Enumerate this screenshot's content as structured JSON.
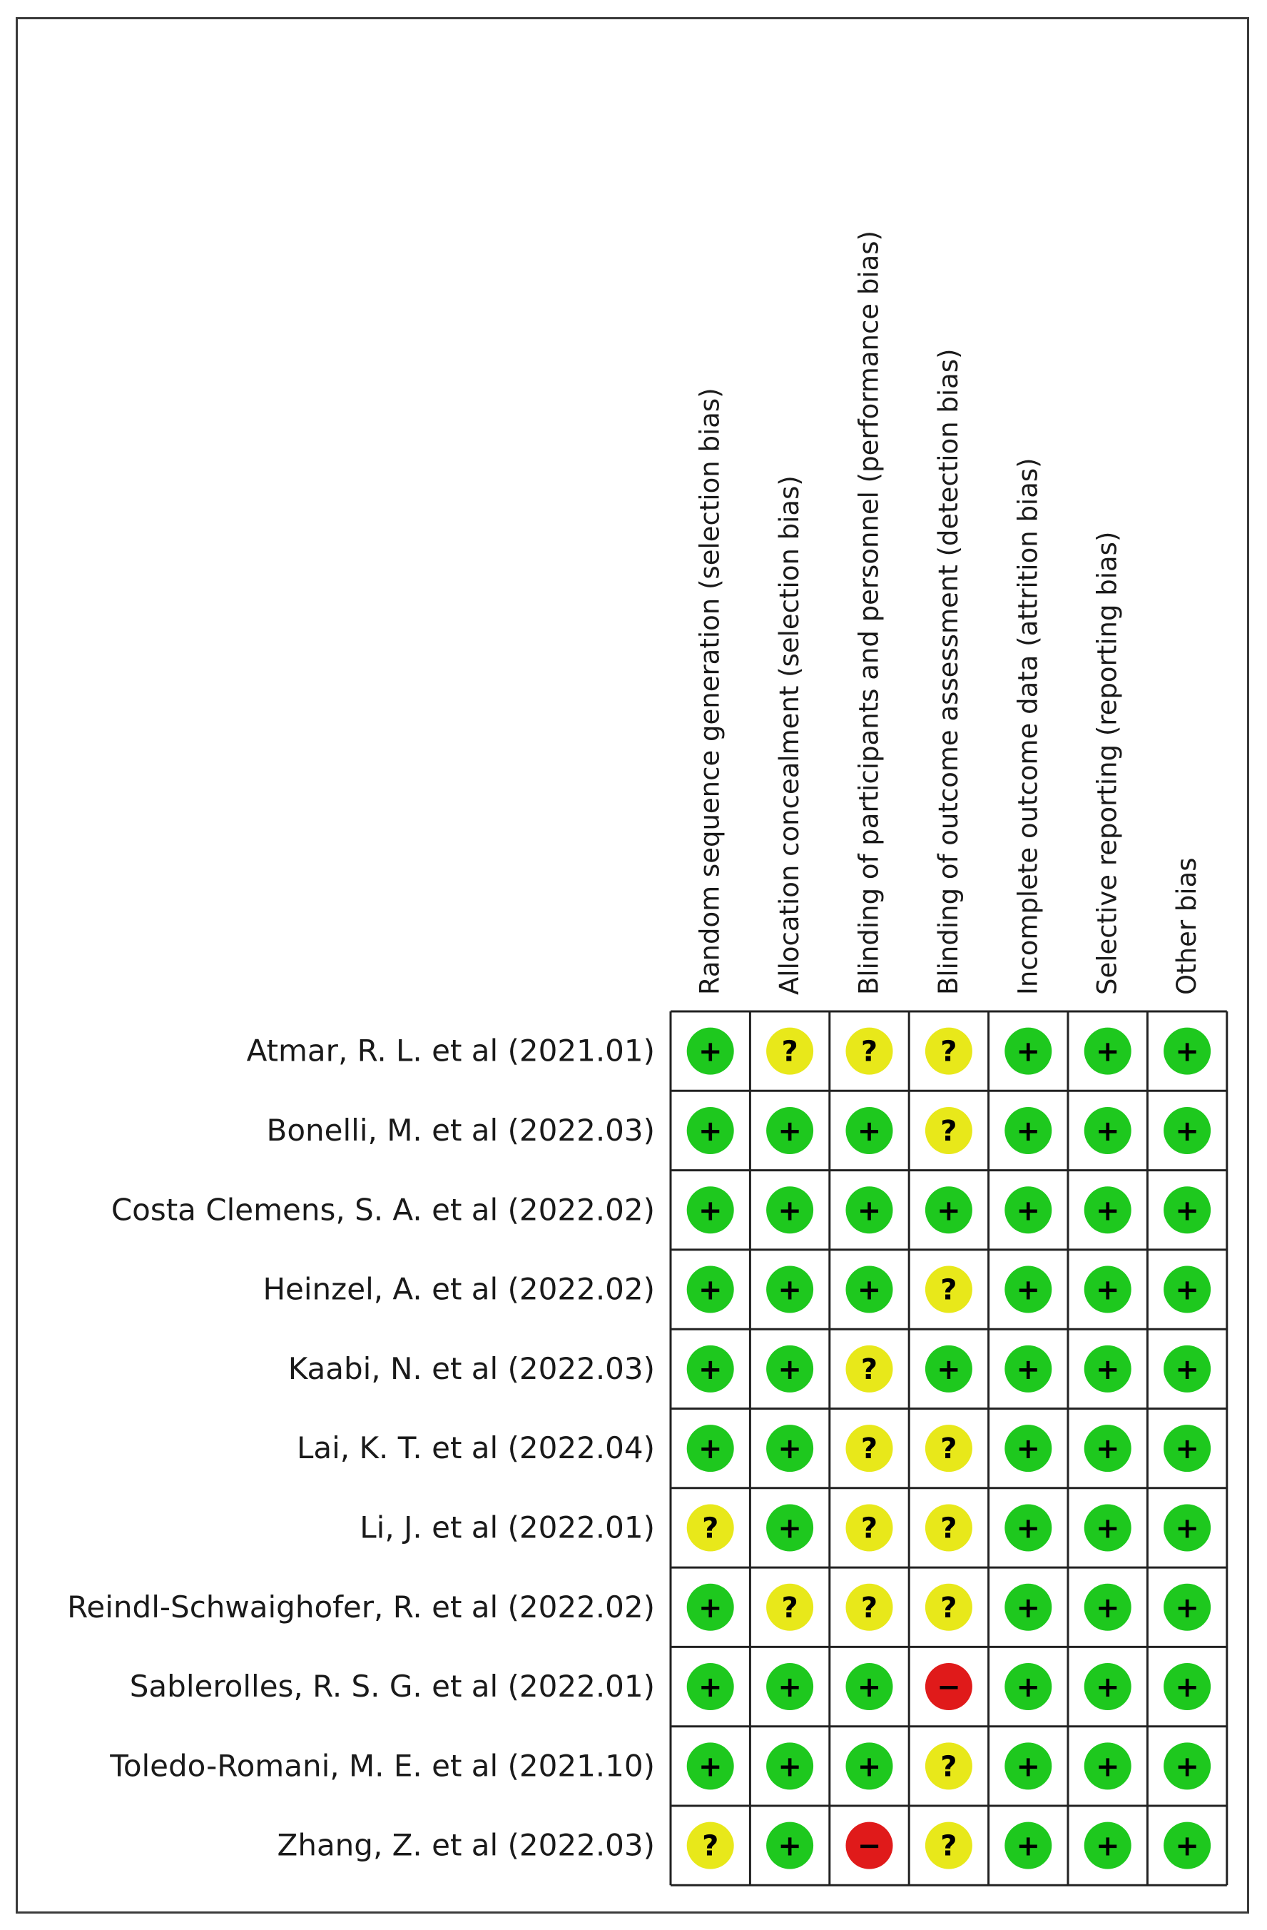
{
  "chart_data": {
    "type": "table",
    "columns": [
      "Random sequence generation (selection bias)",
      "Allocation concealment (selection bias)",
      "Blinding of participants and personnel (performance bias)",
      "Blinding of outcome assessment (detection bias)",
      "Incomplete outcome data (attrition bias)",
      "Selective reporting (reporting bias)",
      "Other bias"
    ],
    "rows": [
      {
        "study": "Atmar, R. L. et al (2021.01)",
        "ratings": [
          "+",
          "?",
          "?",
          "?",
          "+",
          "+",
          "+"
        ]
      },
      {
        "study": "Bonelli, M. et al (2022.03)",
        "ratings": [
          "+",
          "+",
          "+",
          "?",
          "+",
          "+",
          "+"
        ]
      },
      {
        "study": "Costa Clemens, S. A. et al (2022.02)",
        "ratings": [
          "+",
          "+",
          "+",
          "+",
          "+",
          "+",
          "+"
        ]
      },
      {
        "study": "Heinzel, A. et al (2022.02)",
        "ratings": [
          "+",
          "+",
          "+",
          "?",
          "+",
          "+",
          "+"
        ]
      },
      {
        "study": "Kaabi, N. et al (2022.03)",
        "ratings": [
          "+",
          "+",
          "?",
          "+",
          "+",
          "+",
          "+"
        ]
      },
      {
        "study": "Lai, K. T. et al (2022.04)",
        "ratings": [
          "+",
          "+",
          "?",
          "?",
          "+",
          "+",
          "+"
        ]
      },
      {
        "study": "Li, J. et al (2022.01)",
        "ratings": [
          "?",
          "+",
          "?",
          "?",
          "+",
          "+",
          "+"
        ]
      },
      {
        "study": "Reindl-Schwaighofer, R. et al (2022.02)",
        "ratings": [
          "+",
          "?",
          "?",
          "?",
          "+",
          "+",
          "+"
        ]
      },
      {
        "study": "Sablerolles, R. S. G. et al (2022.01)",
        "ratings": [
          "+",
          "+",
          "+",
          "-",
          "+",
          "+",
          "+"
        ]
      },
      {
        "study": "Toledo-Romani, M. E. et al (2021.10)",
        "ratings": [
          "+",
          "+",
          "+",
          "?",
          "+",
          "+",
          "+"
        ]
      },
      {
        "study": "Zhang, Z. et al (2022.03)",
        "ratings": [
          "?",
          "+",
          "-",
          "?",
          "+",
          "+",
          "+"
        ]
      }
    ],
    "legend": {
      "+": {
        "symbol": "+",
        "color": "#1ec81e"
      },
      "?": {
        "symbol": "?",
        "color": "#e8e81a"
      },
      "-": {
        "symbol": "−",
        "color": "#e01a1a"
      }
    }
  }
}
